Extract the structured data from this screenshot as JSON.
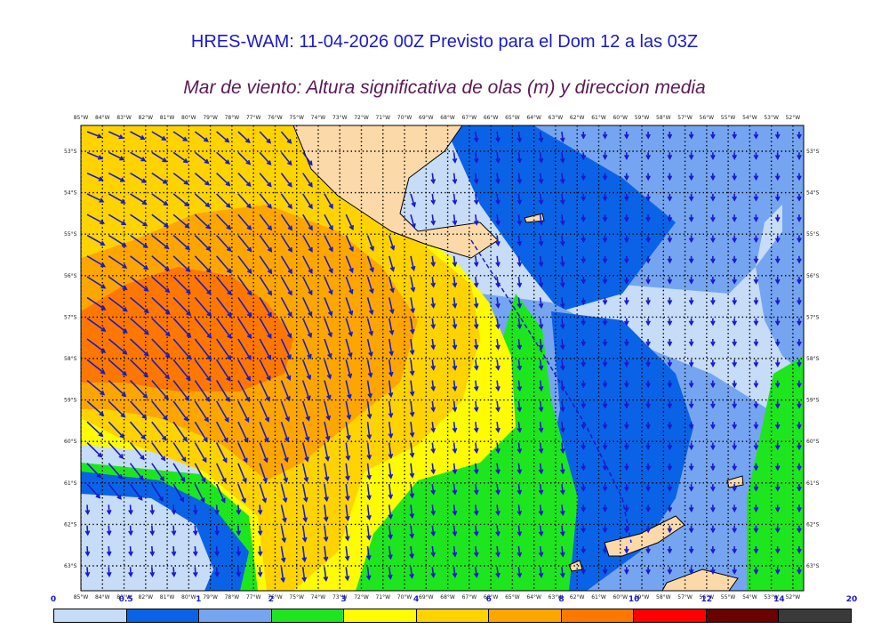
{
  "header": {
    "title": "HRES-WAM: 11-04-2026 00Z Previsto para el Dom 12 a las 03Z",
    "subtitle": "Mar de viento: Altura significativa de olas (m) y direccion media"
  },
  "map": {
    "lon_labels": [
      "85°W",
      "84°W",
      "83°W",
      "82°W",
      "81°W",
      "80°W",
      "79°W",
      "78°W",
      "77°W",
      "76°W",
      "75°W",
      "74°W",
      "73°W",
      "72°W",
      "71°W",
      "70°W",
      "69°W",
      "68°W",
      "67°W",
      "66°W",
      "65°W",
      "64°W",
      "63°W",
      "62°W",
      "61°W",
      "60°W",
      "59°W",
      "58°W",
      "57°W",
      "56°W",
      "55°W",
      "54°W",
      "53°W",
      "52°W"
    ],
    "lat_labels": [
      "53°S",
      "54°S",
      "55°S",
      "56°S",
      "57°S",
      "58°S",
      "59°S",
      "60°S",
      "61°S",
      "62°S",
      "63°S"
    ],
    "land_color": "#fcd9a9",
    "arrow_color": "#1a1acc"
  },
  "colorbar": {
    "labels": [
      "0",
      "0.5",
      "1",
      "2",
      "3",
      "4",
      "6",
      "8",
      "10",
      "12",
      "14",
      "20"
    ],
    "colors": [
      "#c6dcf7",
      "#0a63e6",
      "#75a5f1",
      "#1ee61e",
      "#fffb00",
      "#fed300",
      "#fea600",
      "#fe7700",
      "#fe0000",
      "#6a0000",
      "#3a3a3a"
    ]
  }
}
